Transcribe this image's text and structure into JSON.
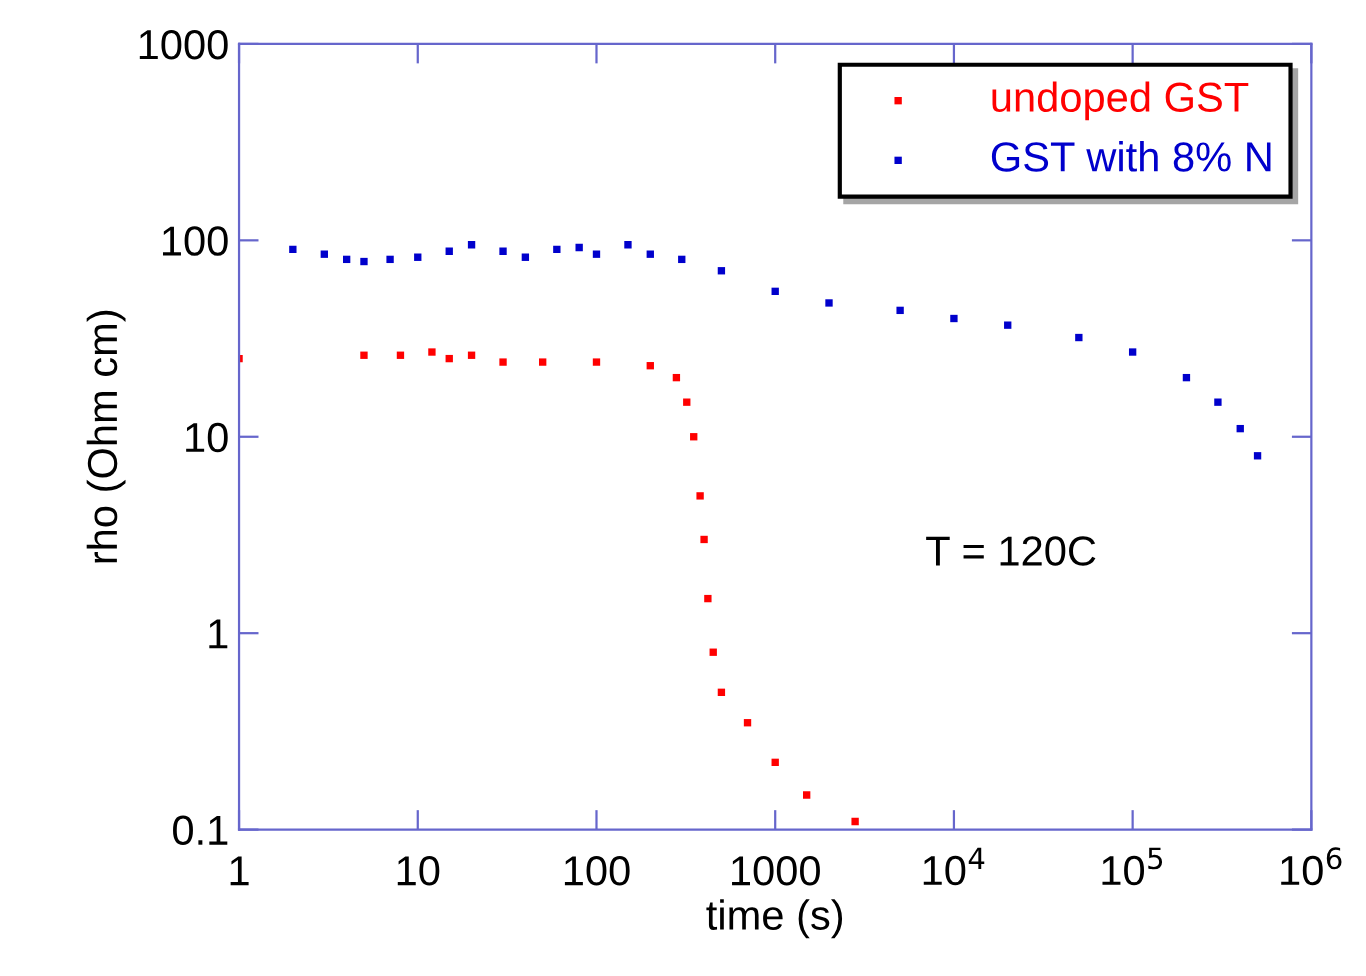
{
  "chart_data": {
    "type": "scatter",
    "xlabel": "time (s)",
    "ylabel": "rho (Ohm cm)",
    "log": "xy",
    "marker": "square",
    "legend": "top right",
    "grid": false,
    "xlim": [
      1,
      1000000
    ],
    "xticks": [
      1,
      10,
      100,
      1000,
      {
        "value": 10000,
        "label": "10$^{4}$"
      },
      {
        "value": 100000,
        "label": "10$^{5}$"
      },
      {
        "value": 1000000,
        "label": "10$^{6}$"
      }
    ],
    "ylim": [
      0.1,
      1000
    ],
    "yticks": [
      0.1,
      1,
      10,
      100,
      1000
    ],
    "annotations": [
      "T = 120C"
    ],
    "series": [
      {
        "name": "undoped GST",
        "color": "#ff0000",
        "x": [
          1,
          5,
          8,
          12,
          15,
          20,
          30,
          50,
          100,
          200,
          280,
          320,
          350,
          380,
          400,
          420,
          450,
          500,
          700,
          1000,
          1500,
          2800
        ],
        "values": [
          25,
          26,
          26,
          27,
          25,
          26,
          24,
          24,
          24,
          23,
          20,
          15,
          10,
          5,
          3,
          1.5,
          0.8,
          0.5,
          0.35,
          0.22,
          0.15,
          0.11
        ]
      },
      {
        "name": "GST with 8% N",
        "color": "#0000cc",
        "x": [
          2,
          3,
          4,
          5,
          7,
          10,
          15,
          20,
          30,
          40,
          60,
          80,
          100,
          150,
          200,
          300,
          500,
          1000,
          2000,
          5000,
          10000,
          20000,
          50000,
          100000,
          200000,
          300000,
          400000,
          500000
        ],
        "values": [
          90,
          85,
          80,
          78,
          80,
          82,
          88,
          95,
          88,
          82,
          90,
          92,
          85,
          95,
          85,
          80,
          70,
          55,
          48,
          44,
          40,
          37,
          32,
          27,
          20,
          15,
          11,
          8
        ]
      }
    ]
  }
}
